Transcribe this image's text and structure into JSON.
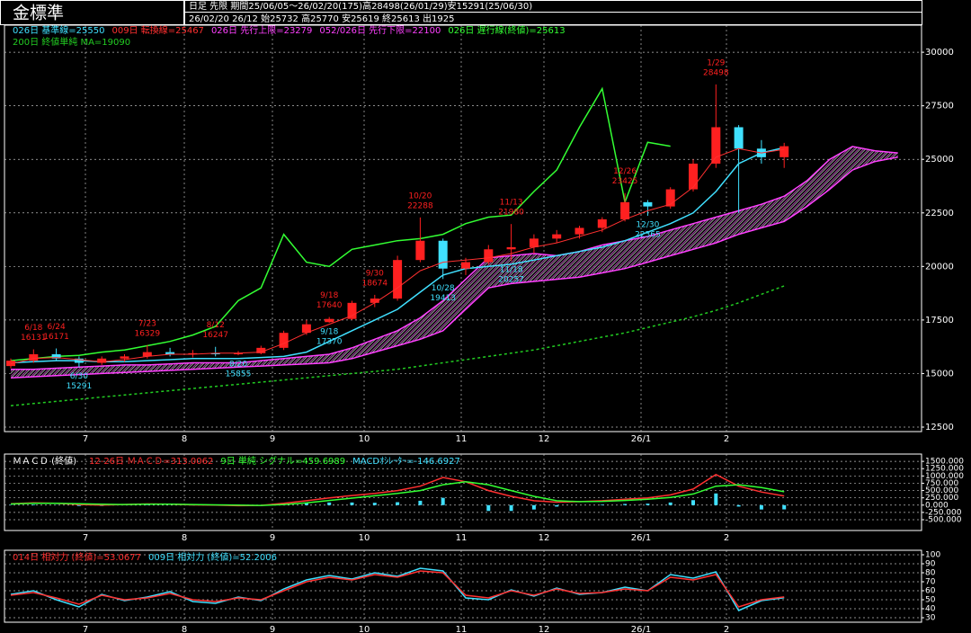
{
  "header": {
    "title": "金標準",
    "info1": "日足 先限 期間25/06/05～26/02/20(175)高28498(26/01/29)安15291(25/06/30)",
    "info2": "26/02/20 26/12 始25732 高25770 安25619 終25613 出1925"
  },
  "chart_data": [
    {
      "type": "candlestick",
      "up_color": "#ff2020",
      "down_color": "#40e0ff",
      "grid": true,
      "cloud_color": "#ff40ff",
      "ylim": [
        12290,
        30760
      ],
      "yticks": [
        12500,
        15000,
        17500,
        20000,
        22500,
        25000,
        27500,
        30000
      ],
      "xtick_labels": [
        "7",
        "8",
        "9",
        "10",
        "11",
        "12",
        "26/1",
        "2"
      ],
      "open": [
        15350,
        15600,
        15900,
        15700,
        15500,
        15700,
        15800,
        16000,
        15900,
        15950,
        15900,
        15950,
        16200,
        16900,
        17400,
        17550,
        18300,
        18500,
        20300,
        21200,
        19900,
        20200,
        20800,
        20900,
        21300,
        21500,
        21800,
        22200,
        23000,
        22800,
        23600,
        24800,
        26500,
        25500,
        25100
      ],
      "high": [
        15700,
        16131,
        16171,
        15800,
        15800,
        15900,
        16329,
        16200,
        16100,
        16247,
        16050,
        16300,
        17000,
        17500,
        17640,
        18400,
        18674,
        20500,
        22288,
        21300,
        20400,
        21000,
        21980,
        21500,
        21700,
        21900,
        22300,
        23425,
        23100,
        23700,
        25000,
        28498,
        26600,
        25900,
        25770
      ],
      "low": [
        15250,
        15500,
        15600,
        15291,
        15400,
        15550,
        15700,
        15800,
        15750,
        15800,
        15855,
        15900,
        16100,
        16800,
        17370,
        17500,
        18100,
        18400,
        20200,
        19413,
        19600,
        20100,
        20257,
        20600,
        21100,
        21300,
        21600,
        22100,
        22365,
        22700,
        23500,
        24600,
        22500,
        24800,
        24600
      ],
      "close": [
        15600,
        15900,
        15700,
        15500,
        15700,
        15800,
        16000,
        15900,
        15950,
        15900,
        15950,
        16200,
        16900,
        17300,
        17550,
        18300,
        18500,
        20300,
        21200,
        19900,
        20200,
        20800,
        20900,
        21300,
        21500,
        21800,
        22200,
        23000,
        22800,
        23600,
        24800,
        26500,
        25500,
        25100,
        25613
      ],
      "annotations": [
        {
          "date": "6/18",
          "value": 16131
        },
        {
          "date": "6/24",
          "value": 16171
        },
        {
          "date": "6/30",
          "value": 15291
        },
        {
          "date": "7/23",
          "value": 16329
        },
        {
          "date": "8/12",
          "value": 16247
        },
        {
          "date": "8/20",
          "value": 15855
        },
        {
          "date": "9/18",
          "value": 17640
        },
        {
          "date": "9/18",
          "value": 17370
        },
        {
          "date": "9/30",
          "value": 18674
        },
        {
          "date": "10/20",
          "value": 22288
        },
        {
          "date": "10/28",
          "value": 19413
        },
        {
          "date": "11/13",
          "value": 21980
        },
        {
          "date": "11/18",
          "value": 20257
        },
        {
          "date": "12/26",
          "value": 23425
        },
        {
          "date": "12/30",
          "value": 22365
        },
        {
          "date": "1/29",
          "value": 28498
        }
      ],
      "series": [
        {
          "name": "026日 基準線=25550",
          "color": "#40e0ff",
          "values": [
            15500,
            15550,
            15600,
            15600,
            15550,
            15550,
            15600,
            15650,
            15700,
            15700,
            15700,
            15750,
            15800,
            16000,
            16500,
            17000,
            17500,
            18000,
            18800,
            19600,
            19900,
            20000,
            20100,
            20300,
            20500,
            20700,
            20900,
            21200,
            21600,
            22000,
            22500,
            23500,
            24800,
            25300,
            25550
          ]
        },
        {
          "name": "009日 転換線=25467",
          "color": "#ff3030",
          "values": [
            15450,
            15700,
            15750,
            15650,
            15550,
            15650,
            15800,
            15900,
            15900,
            15950,
            15950,
            16000,
            16400,
            16900,
            17300,
            17700,
            18300,
            19000,
            19800,
            20200,
            20300,
            20400,
            20600,
            20900,
            21100,
            21400,
            21700,
            22200,
            22600,
            22900,
            23700,
            25100,
            25500,
            25300,
            25467
          ]
        },
        {
          "name": "026日 先行上限=23279",
          "color": "#ff40ff",
          "values": [
            15200,
            15200,
            15250,
            15300,
            15350,
            15400,
            15400,
            15450,
            15500,
            15500,
            15500,
            15600,
            15700,
            15800,
            15900,
            16200,
            16600,
            17000,
            17600,
            18400,
            19400,
            20400,
            20500,
            20600,
            20500,
            20700,
            21000,
            21200,
            21400,
            21700,
            22000,
            22300,
            22600,
            22900,
            23279,
            24000,
            25000,
            25600,
            25400,
            25300
          ]
        },
        {
          "name": "052/026日 先行下限=22100",
          "color": "#ff40ff",
          "values": [
            14800,
            14850,
            14900,
            14950,
            15000,
            15050,
            15100,
            15150,
            15200,
            15250,
            15300,
            15350,
            15400,
            15450,
            15500,
            15700,
            16000,
            16300,
            16600,
            17000,
            18000,
            19000,
            19200,
            19300,
            19400,
            19500,
            19700,
            19900,
            20200,
            20500,
            20800,
            21100,
            21500,
            21800,
            22100,
            22800,
            23600,
            24500,
            24900,
            25100
          ]
        },
        {
          "name": "026日 遅行線(終値)=25613",
          "color": "#33ff33",
          "values": [
            15600,
            15700,
            15800,
            15850,
            16000,
            16100,
            16300,
            16500,
            16800,
            17200,
            18400,
            19000,
            21500,
            20200,
            20000,
            20800,
            21000,
            21200,
            21300,
            21500,
            22000,
            22300,
            22400,
            23500,
            24500,
            26500,
            28300,
            23000,
            25800,
            25613
          ]
        },
        {
          "name": "200日 終値単純 MA=19090",
          "color": "#22cc22",
          "dash": true,
          "values": [
            13500,
            13600,
            13700,
            13800,
            13900,
            14000,
            14100,
            14200,
            14300,
            14400,
            14500,
            14600,
            14700,
            14800,
            14900,
            15000,
            15100,
            15200,
            15350,
            15500,
            15650,
            15800,
            15950,
            16100,
            16300,
            16500,
            16700,
            16900,
            17150,
            17400,
            17650,
            17950,
            18300,
            18700,
            19090
          ]
        }
      ]
    },
    {
      "type": "macd",
      "title": "ＭＡＣＤ (終値)",
      "grid": true,
      "ylim": [
        -870,
        1750
      ],
      "yticks": [
        {
          "value": -500,
          "label": "-500.000"
        },
        {
          "value": -250,
          "label": "-250.000"
        },
        {
          "value": 0,
          "label": "0.000"
        },
        {
          "value": 250,
          "label": "250.000"
        },
        {
          "value": 500,
          "label": "500.000"
        },
        {
          "value": 750,
          "label": "750.000"
        },
        {
          "value": 1000,
          "label": "1000.000"
        },
        {
          "value": 1250,
          "label": "1250.000"
        },
        {
          "value": 1500,
          "label": "1500.000"
        }
      ],
      "series": [
        {
          "name": "12-26日 ＭＡＣＤ=313.0062",
          "color": "#ff3030",
          "style": "line",
          "values": [
            50,
            80,
            60,
            20,
            0,
            20,
            40,
            30,
            10,
            0,
            -20,
            -10,
            60,
            150,
            250,
            330,
            400,
            500,
            650,
            950,
            800,
            500,
            300,
            150,
            100,
            120,
            150,
            200,
            250,
            350,
            550,
            1050,
            650,
            450,
            313.0062
          ]
        },
        {
          "name": "9日 単純 シグナル=459.6989",
          "color": "#33ff33",
          "style": "line",
          "values": [
            40,
            60,
            65,
            50,
            30,
            20,
            30,
            30,
            20,
            10,
            0,
            -10,
            20,
            80,
            160,
            240,
            320,
            400,
            500,
            700,
            800,
            700,
            500,
            300,
            150,
            120,
            130,
            160,
            200,
            260,
            380,
            650,
            700,
            600,
            459.6989
          ]
        },
        {
          "name": "MACDｵｼﾚｰﾀｰ=-146.6927",
          "color": "#40e0ff",
          "style": "bar",
          "values": [
            10,
            20,
            -5,
            -30,
            -30,
            0,
            10,
            0,
            -10,
            -10,
            -20,
            0,
            40,
            70,
            90,
            90,
            80,
            100,
            150,
            250,
            0,
            -200,
            -200,
            -150,
            -50,
            0,
            20,
            40,
            50,
            90,
            170,
            400,
            -50,
            -150,
            -146.6927
          ]
        }
      ]
    },
    {
      "type": "line",
      "grid": true,
      "ylim": [
        25,
        105
      ],
      "yticks": [
        30,
        40,
        50,
        60,
        70,
        80,
        90,
        100
      ],
      "series": [
        {
          "name": "014日 相対力 (終値)=53.0677",
          "color": "#ff3030",
          "values": [
            55,
            58,
            52,
            45,
            55,
            50,
            52,
            57,
            50,
            48,
            52,
            50,
            60,
            70,
            75,
            72,
            78,
            75,
            82,
            80,
            55,
            52,
            60,
            55,
            62,
            57,
            58,
            62,
            60,
            75,
            72,
            78,
            42,
            50,
            53.0677
          ]
        },
        {
          "name": "009日 相対力 (終値)=52.2006",
          "color": "#40e0ff",
          "values": [
            56,
            60,
            50,
            42,
            56,
            49,
            53,
            59,
            48,
            46,
            53,
            49,
            62,
            72,
            77,
            73,
            80,
            76,
            85,
            82,
            52,
            50,
            61,
            54,
            63,
            56,
            58,
            64,
            60,
            78,
            74,
            81,
            38,
            49,
            52.2006
          ]
        }
      ]
    }
  ]
}
